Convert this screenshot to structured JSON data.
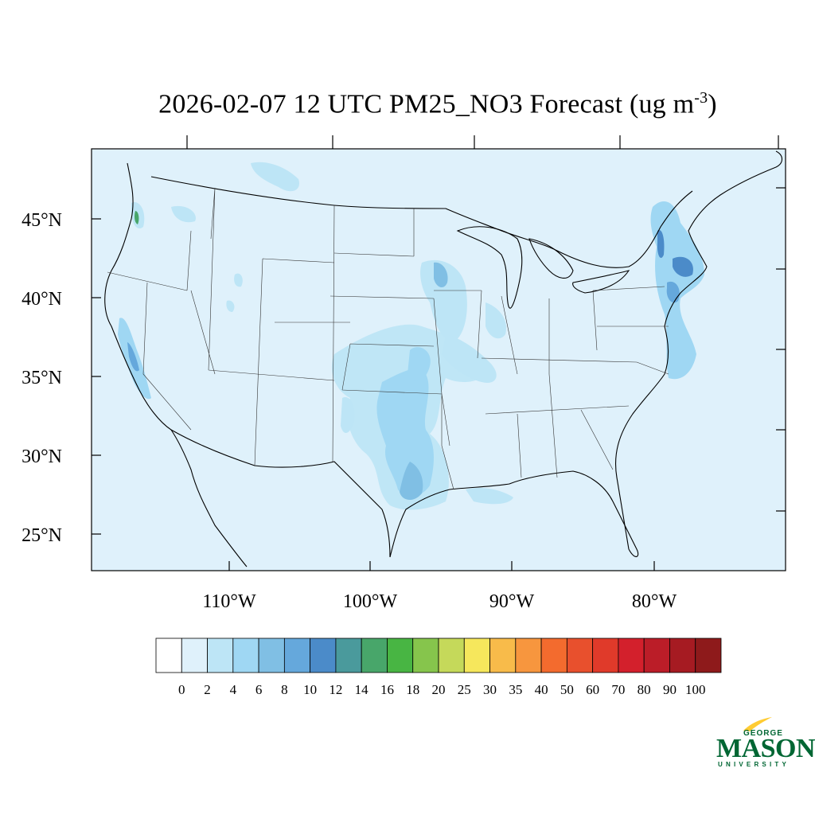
{
  "title": {
    "main": "2026-02-07 12 UTC PM25_NO3 Forecast (ug m",
    "superscript": "-3",
    "close": ")"
  },
  "map": {
    "background_color": "#dff1fb",
    "lat_labels": [
      "45°N",
      "40°N",
      "35°N",
      "30°N",
      "25°N"
    ],
    "lon_labels": [
      "110°W",
      "100°W",
      "90°W",
      "80°W"
    ]
  },
  "colorbar": {
    "colors": [
      "#ffffff",
      "#dff1fb",
      "#bde5f6",
      "#9fd7f3",
      "#80bfe4",
      "#65a8dc",
      "#4b8bc9",
      "#4a9a9c",
      "#48a66a",
      "#48b543",
      "#86c54c",
      "#c5d95a",
      "#f6e75c",
      "#f8bb4a",
      "#f7963e",
      "#f36b2e",
      "#e8502d",
      "#e03a2a",
      "#d3202c",
      "#bb1d28",
      "#a61b22",
      "#8e1a1b"
    ],
    "labels": [
      "0",
      "2",
      "4",
      "6",
      "8",
      "10",
      "12",
      "14",
      "16",
      "18",
      "20",
      "25",
      "30",
      "35",
      "40",
      "50",
      "60",
      "70",
      "80",
      "90",
      "100"
    ]
  },
  "logo": {
    "george": "GEORGE",
    "mason": "MASON",
    "university": "UNIVERSITY",
    "brand_color": "#006633",
    "accent_color": "#ffcc33"
  }
}
